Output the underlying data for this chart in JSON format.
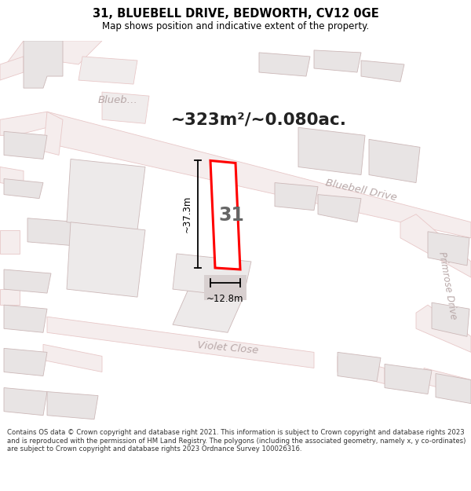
{
  "title": "31, BLUEBELL DRIVE, BEDWORTH, CV12 0GE",
  "subtitle": "Map shows position and indicative extent of the property.",
  "area_text": "~323m²/~0.080ac.",
  "dim_width": "~12.8m",
  "dim_height": "~37.3m",
  "label_number": "31",
  "footer": "Contains OS data © Crown copyright and database right 2021. This information is subject to Crown copyright and database rights 2023 and is reproduced with the permission of HM Land Registry. The polygons (including the associated geometry, namely x, y co-ordinates) are subject to Crown copyright and database rights 2023 Ordnance Survey 100026316.",
  "map_bg": "#f7f3f3",
  "road_fill": "#f5eded",
  "road_edge": "#e8c8c8",
  "building_fill": "#e8e4e4",
  "building_edge": "#ccb8b8",
  "highlight_fill": "#ffffff",
  "highlight_edge": "#ff0000",
  "street_label_color": "#b8a8a8",
  "title_color": "#000000",
  "area_color": "#222222",
  "dim_color": "#000000",
  "footer_color": "#333333"
}
